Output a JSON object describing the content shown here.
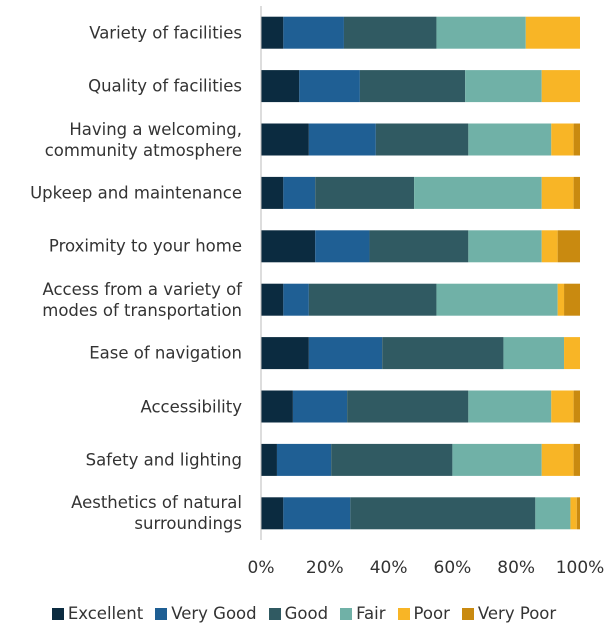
{
  "chart_data": {
    "type": "stacked_barh",
    "categories": [
      "Variety of facilities",
      "Quality of facilities",
      "Having a welcoming,\ncommunity atmosphere",
      "Upkeep and maintenance",
      "Proximity to your home",
      "Access from a variety of\nmodes of transportation",
      "Ease of navigation",
      "Accessibility",
      "Safety and lighting",
      "Aesthetics of natural\nsurroundings"
    ],
    "series": [
      {
        "name": "Excellent",
        "color": "#0b2b40",
        "values": [
          7,
          12,
          15,
          7,
          17,
          7,
          15,
          10,
          5,
          7
        ]
      },
      {
        "name": "Very Good",
        "color": "#1f5f94",
        "values": [
          19,
          19,
          21,
          10,
          17,
          8,
          23,
          17,
          17,
          21
        ]
      },
      {
        "name": "Good",
        "color": "#305a62",
        "values": [
          29,
          33,
          29,
          31,
          31,
          40,
          38,
          38,
          38,
          58
        ]
      },
      {
        "name": "Fair",
        "color": "#70b1a7",
        "values": [
          28,
          24,
          26,
          40,
          23,
          38,
          19,
          26,
          28,
          11
        ]
      },
      {
        "name": "Poor",
        "color": "#f8b526",
        "values": [
          17,
          12,
          7,
          10,
          5,
          2,
          5,
          7,
          10,
          2
        ]
      },
      {
        "name": "Very Poor",
        "color": "#c98a10",
        "values": [
          0,
          0,
          2,
          2,
          7,
          5,
          0,
          2,
          2,
          1
        ]
      }
    ],
    "xlim": [
      0,
      100
    ],
    "xticks": [
      {
        "value": 0,
        "label": "0%"
      },
      {
        "value": 20,
        "label": "20%"
      },
      {
        "value": 40,
        "label": "40%"
      },
      {
        "value": 60,
        "label": "60%"
      },
      {
        "value": 80,
        "label": "80%"
      },
      {
        "value": 100,
        "label": "100%"
      }
    ],
    "legend": "bottom"
  }
}
